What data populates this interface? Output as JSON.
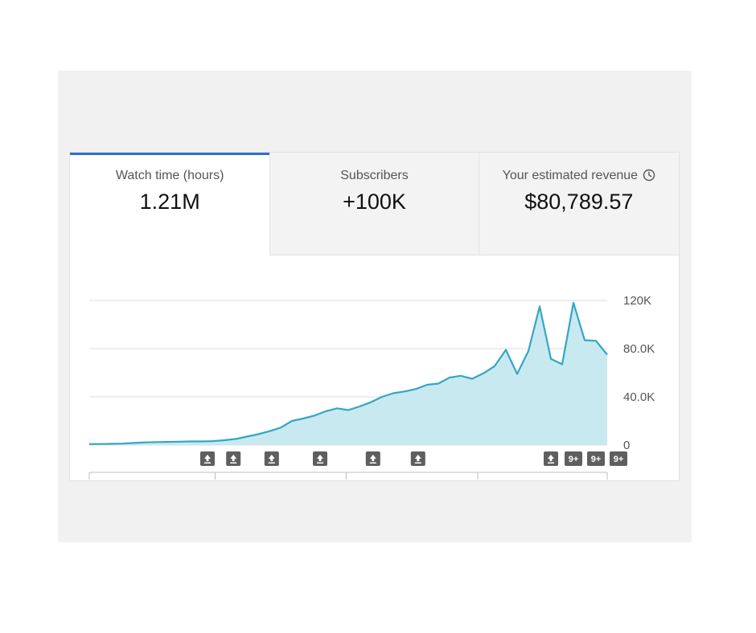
{
  "tabs": [
    {
      "label": "Watch time (hours)",
      "value": "1.21M",
      "active": true
    },
    {
      "label": "Subscribers",
      "value": "+100K",
      "active": false
    },
    {
      "label": "Your estimated revenue",
      "value": "$80,789.57",
      "active": false,
      "icon": "clock-icon"
    }
  ],
  "colors": {
    "accent": "#2f6fcf",
    "line": "#33a7c4",
    "fill": "#c9e9f1",
    "badge": "#5f5f5f"
  },
  "chart_data": {
    "type": "area",
    "ylim": [
      0,
      120000
    ],
    "yticks": [
      {
        "value": 120000,
        "label": "120K"
      },
      {
        "value": 80000,
        "label": "80.0K"
      },
      {
        "value": 40000,
        "label": "40.0K"
      },
      {
        "value": 0,
        "label": "0"
      }
    ],
    "grid": true,
    "values": [
      800,
      900,
      1000,
      1200,
      1700,
      2200,
      2500,
      2600,
      2800,
      3000,
      3000,
      3300,
      4000,
      5000,
      7000,
      9000,
      11500,
      14500,
      20000,
      22000,
      24500,
      28000,
      30500,
      29000,
      32000,
      35500,
      40000,
      43000,
      44500,
      46500,
      50000,
      51000,
      56000,
      57500,
      55000,
      59500,
      65500,
      79000,
      59000,
      78000,
      115000,
      71500,
      67000,
      118000,
      87000,
      86500,
      75000
    ],
    "x_tick_fractions": [
      0,
      0.243,
      0.496,
      0.75,
      1
    ],
    "annotations": [
      {
        "index": 10.5,
        "type": "upload-icon"
      },
      {
        "index": 12.8,
        "type": "upload-icon"
      },
      {
        "index": 16.2,
        "type": "upload-icon"
      },
      {
        "index": 20.5,
        "type": "upload-icon"
      },
      {
        "index": 25.2,
        "type": "upload-icon"
      },
      {
        "index": 29.2,
        "type": "upload-icon"
      },
      {
        "index": 41.0,
        "type": "upload-icon"
      },
      {
        "index": 43.0,
        "type": "text",
        "text": "9+"
      },
      {
        "index": 45.0,
        "type": "text",
        "text": "9+"
      },
      {
        "index": 47.0,
        "type": "text",
        "text": "9+"
      }
    ]
  }
}
